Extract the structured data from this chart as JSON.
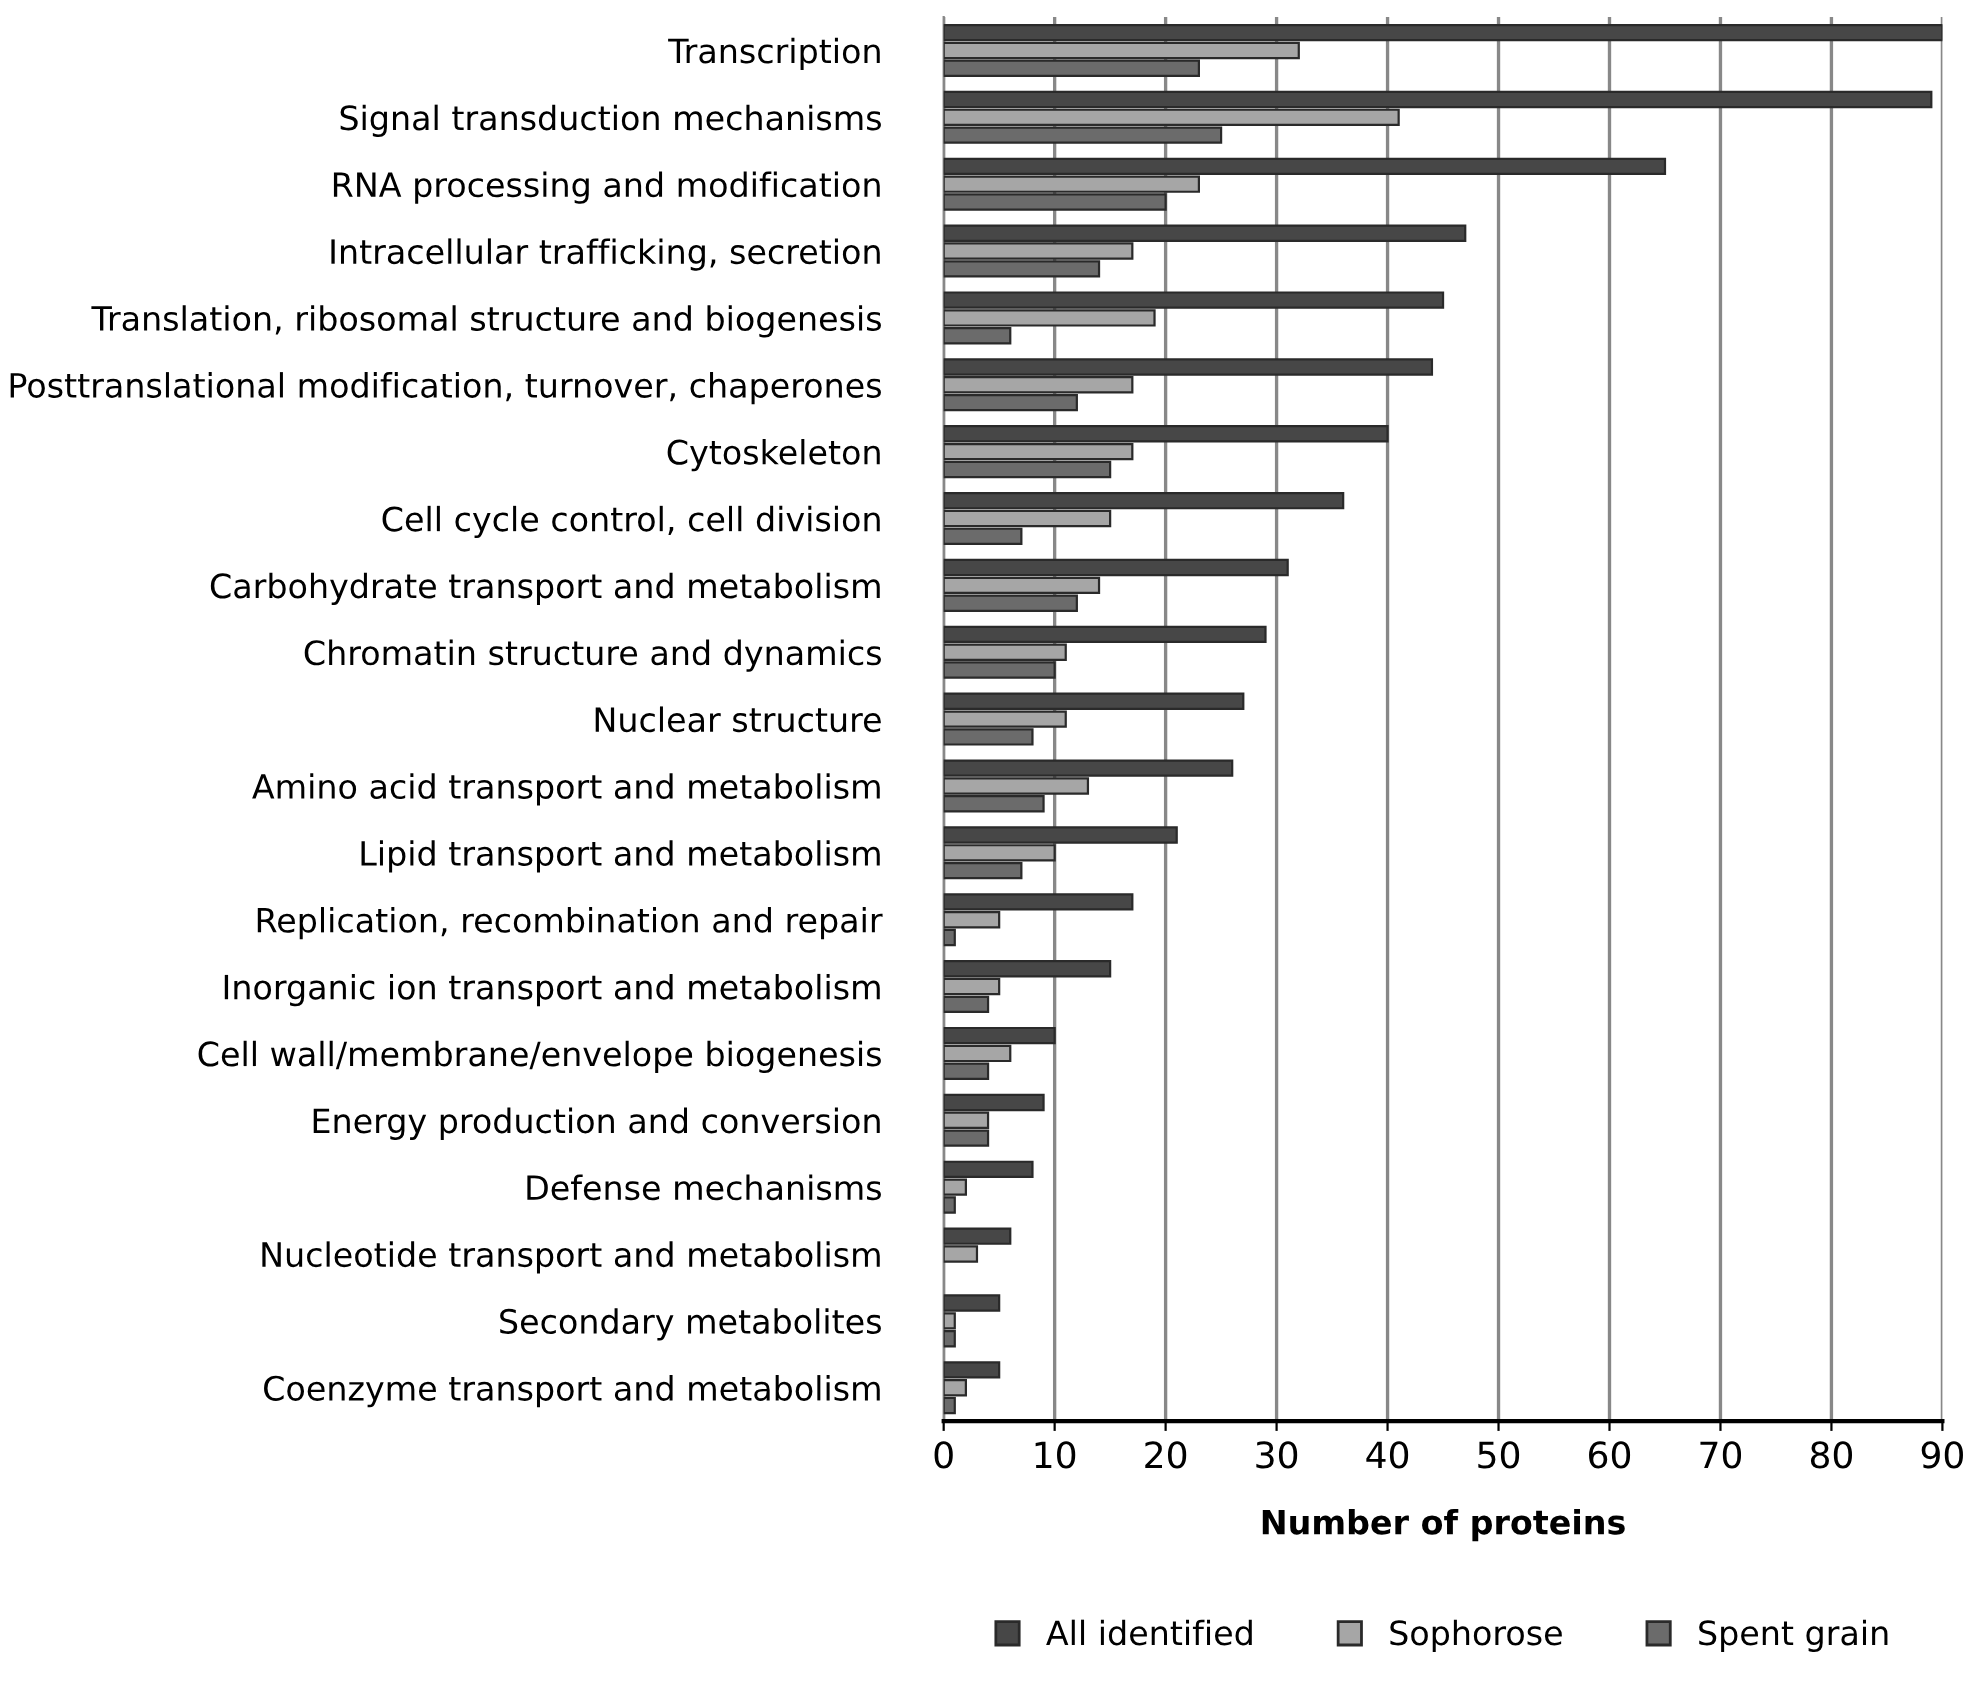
{
  "chart_data": {
    "type": "bar",
    "orientation": "horizontal",
    "xlabel": "Number of proteins",
    "categories": [
      "Transcription",
      "Signal transduction mechanisms",
      "RNA processing and modification",
      "Intracellular trafficking, secretion",
      "Translation, ribosomal structure and biogenesis",
      "Posttranslational modification, turnover, chaperones",
      "Cytoskeleton",
      "Cell cycle control, cell division",
      "Carbohydrate transport and metabolism",
      "Chromatin structure and dynamics",
      "Nuclear structure",
      "Amino acid transport and metabolism",
      "Lipid transport and metabolism",
      "Replication, recombination and repair",
      "Inorganic ion transport and metabolism",
      "Cell wall/membrane/envelope biogenesis",
      "Energy production and conversion",
      "Defense mechanisms",
      "Nucleotide transport and metabolism",
      "Secondary metabolites",
      "Coenzyme transport and metabolism"
    ],
    "series": [
      {
        "name": "All identified",
        "color": "#474747",
        "values": [
          90,
          89,
          65,
          47,
          45,
          44,
          40,
          36,
          31,
          29,
          27,
          26,
          21,
          17,
          15,
          10,
          9,
          8,
          6,
          5,
          5
        ]
      },
      {
        "name": "Sophorose",
        "color": "#a6a6a6",
        "values": [
          32,
          41,
          23,
          17,
          19,
          17,
          17,
          15,
          14,
          11,
          11,
          13,
          10,
          5,
          5,
          6,
          4,
          2,
          3,
          1,
          2
        ]
      },
      {
        "name": "Spent grain",
        "color": "#6b6b6b",
        "values": [
          23,
          25,
          20,
          14,
          6,
          12,
          15,
          7,
          12,
          10,
          8,
          9,
          7,
          1,
          4,
          4,
          4,
          1,
          null,
          1,
          1
        ]
      }
    ],
    "xlim": [
      0,
      90
    ],
    "xticks": [
      0,
      10,
      20,
      30,
      40,
      50,
      60,
      70,
      80,
      90
    ],
    "grid": "x",
    "legend": "bottom"
  }
}
